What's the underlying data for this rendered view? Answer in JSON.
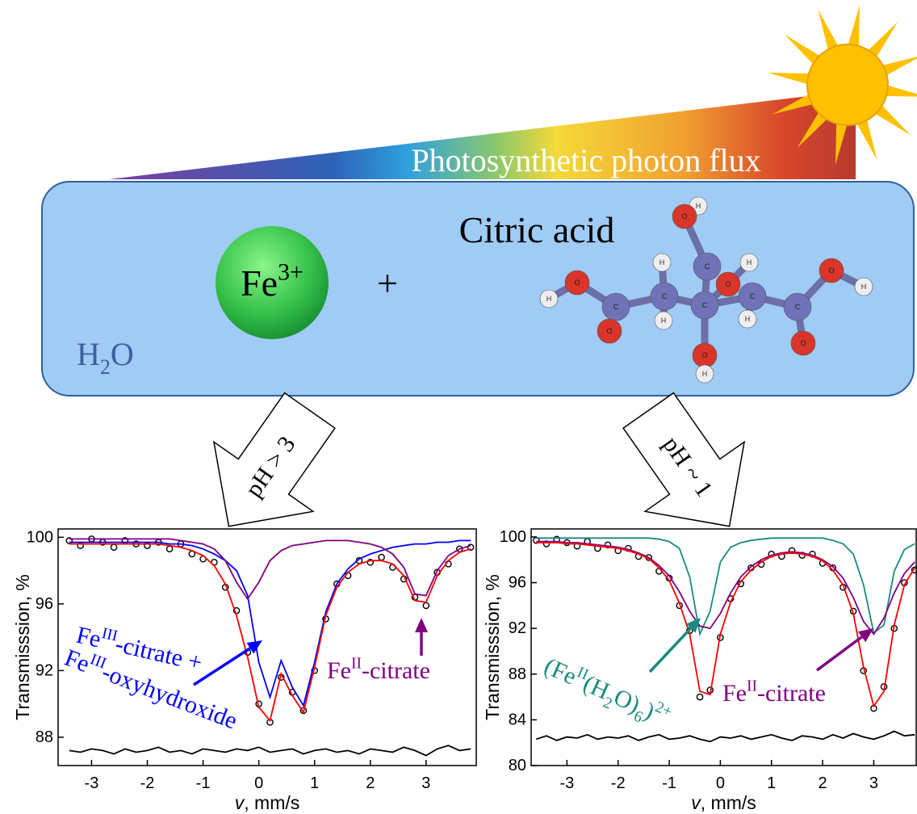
{
  "diagram": {
    "flux_label": "Photosynthetic photon flux",
    "reagent": [
      {
        "text": "Fe"
      },
      {
        "sup": "3+"
      }
    ],
    "plus": "+",
    "acid_label": "Citric acid",
    "solvent": [
      {
        "text": "H"
      },
      {
        "sub": "2"
      },
      {
        "text": "O"
      }
    ],
    "atoms": [
      "H",
      "O",
      "C",
      "O",
      "H",
      "H",
      "C",
      "H",
      "C",
      "C",
      "H",
      "C",
      "O",
      "H",
      "O",
      "C",
      "O",
      "H",
      "O",
      "O",
      "H"
    ],
    "conditions": [
      "pH > 3",
      "pH ~ 1"
    ]
  },
  "chart_data": [
    {
      "type": "line",
      "ylabel": "Transmisssion, %",
      "xlabel": [
        {
          "italic": "v"
        },
        {
          "text": ", mm/s"
        }
      ],
      "xlim": [
        -3.6,
        3.9
      ],
      "ylim": [
        86.3,
        100.5
      ],
      "xticks": [
        -3,
        -2,
        -1,
        0,
        1,
        2,
        3
      ],
      "yticks": [
        88,
        92,
        96,
        100
      ],
      "x": [
        -3.4,
        -3.2,
        -3.0,
        -2.8,
        -2.6,
        -2.4,
        -2.2,
        -2.0,
        -1.8,
        -1.6,
        -1.4,
        -1.2,
        -1.0,
        -0.8,
        -0.6,
        -0.4,
        -0.2,
        0,
        0.2,
        0.4,
        0.6,
        0.8,
        1.0,
        1.2,
        1.4,
        1.6,
        1.8,
        2.0,
        2.2,
        2.4,
        2.6,
        2.8,
        3.0,
        3.2,
        3.4,
        3.6,
        3.8
      ],
      "series": [
        {
          "style": "markers",
          "color": "#000000",
          "values": [
            99.8,
            99.5,
            99.9,
            99.7,
            99.4,
            99.8,
            99.6,
            99.5,
            99.7,
            99.3,
            99.6,
            99.0,
            98.7,
            98.5,
            97.0,
            95.6,
            93.1,
            90.0,
            88.9,
            91.6,
            90.7,
            89.6,
            92.0,
            95.1,
            97.2,
            97.7,
            98.6,
            98.5,
            98.8,
            98.2,
            97.5,
            96.4,
            95.9,
            97.9,
            98.4,
            99.3,
            99.4
          ]
        },
        {
          "style": "line",
          "color": "#0000ff",
          "values": [
            99.7,
            99.7,
            99.7,
            99.7,
            99.7,
            99.7,
            99.7,
            99.7,
            99.7,
            99.6,
            99.6,
            99.5,
            99.3,
            99.0,
            98.6,
            98.0,
            96.5,
            92.5,
            90.4,
            92.6,
            91.0,
            89.9,
            92.5,
            95.5,
            97.2,
            98.1,
            98.7,
            99.0,
            99.2,
            99.4,
            99.5,
            99.6,
            99.6,
            99.7,
            99.7,
            99.8,
            99.8
          ]
        },
        {
          "style": "line",
          "color": "#800080",
          "values": [
            99.9,
            99.9,
            99.9,
            99.9,
            99.9,
            99.9,
            99.9,
            99.9,
            99.9,
            99.9,
            99.8,
            99.7,
            99.6,
            99.3,
            98.6,
            97.3,
            96.3,
            97.3,
            98.6,
            99.2,
            99.5,
            99.6,
            99.7,
            99.8,
            99.8,
            99.8,
            99.7,
            99.6,
            99.4,
            99.0,
            98.2,
            96.6,
            96.5,
            98.0,
            98.9,
            99.3,
            99.5
          ]
        },
        {
          "style": "line",
          "color": "#ff0000",
          "values": [
            99.6,
            99.6,
            99.6,
            99.6,
            99.6,
            99.6,
            99.6,
            99.6,
            99.6,
            99.5,
            99.4,
            99.2,
            98.9,
            98.3,
            97.2,
            95.3,
            92.8,
            89.8,
            89.0,
            91.8,
            90.5,
            89.5,
            92.2,
            95.3,
            97.0,
            97.9,
            98.4,
            98.6,
            98.6,
            98.4,
            97.7,
            96.2,
            96.1,
            97.7,
            98.6,
            99.1,
            99.3
          ]
        },
        {
          "style": "line",
          "color": "#000000",
          "values": [
            87.2,
            87.1,
            87.3,
            87.2,
            87.0,
            87.3,
            87.1,
            87.2,
            87.4,
            87.1,
            87.2,
            87.0,
            87.3,
            87.2,
            87.1,
            87.3,
            87.2,
            87.4,
            87.1,
            87.2,
            87.3,
            87.0,
            87.2,
            87.3,
            87.1,
            87.2,
            87.0,
            87.3,
            87.2,
            87.1,
            87.4,
            87.2,
            86.9,
            87.3,
            87.5,
            87.2,
            87.3
          ]
        }
      ],
      "annotations": [
        {
          "color": "#0000ff",
          "parts": [
            {
              "text": "Fe"
            },
            {
              "sup": "III"
            },
            {
              "text": "-citrate +"
            }
          ]
        },
        {
          "color": "#0000ff",
          "parts": [
            {
              "text": "Fe"
            },
            {
              "sup": "III"
            },
            {
              "text": "-oxyhydroxide"
            }
          ]
        },
        {
          "color": "#800080",
          "parts": [
            {
              "text": "Fe"
            },
            {
              "sup": "II"
            },
            {
              "text": "-citrate"
            }
          ]
        }
      ]
    },
    {
      "type": "line",
      "ylabel": "Transmisssion, %",
      "xlabel": [
        {
          "italic": "v"
        },
        {
          "text": ", mm/s"
        }
      ],
      "xlim": [
        -3.7,
        3.83
      ],
      "ylim": [
        80,
        100.7
      ],
      "xticks": [
        -3,
        -2,
        -1,
        0,
        1,
        2,
        3
      ],
      "yticks": [
        80,
        84,
        88,
        92,
        96,
        100
      ],
      "x": [
        -3.6,
        -3.4,
        -3.2,
        -3.0,
        -2.8,
        -2.6,
        -2.4,
        -2.2,
        -2.0,
        -1.8,
        -1.6,
        -1.4,
        -1.2,
        -1.0,
        -0.8,
        -0.6,
        -0.4,
        -0.2,
        0,
        0.2,
        0.4,
        0.6,
        0.8,
        1.0,
        1.2,
        1.4,
        1.6,
        1.8,
        2.0,
        2.2,
        2.4,
        2.6,
        2.8,
        3.0,
        3.2,
        3.4,
        3.6,
        3.8
      ],
      "series": [
        {
          "style": "markers",
          "color": "#000000",
          "values": [
            99.7,
            99.4,
            99.8,
            99.5,
            99.2,
            99.6,
            99.0,
            99.3,
            98.8,
            99.0,
            98.3,
            98.2,
            97.0,
            96.4,
            94.0,
            91.8,
            86.0,
            86.6,
            91.2,
            94.6,
            95.9,
            97.3,
            97.6,
            98.5,
            98.3,
            98.8,
            98.4,
            98.5,
            97.7,
            97.3,
            95.6,
            93.5,
            88.3,
            85.0,
            86.9,
            92.0,
            96.0,
            97.1
          ]
        },
        {
          "style": "line",
          "color": "#1a8a80",
          "values": [
            99.9,
            99.9,
            99.9,
            99.9,
            99.9,
            99.9,
            99.9,
            99.9,
            99.9,
            99.9,
            99.9,
            99.9,
            99.8,
            99.6,
            99.0,
            96.5,
            91.5,
            93.5,
            97.8,
            99.1,
            99.5,
            99.7,
            99.8,
            99.9,
            99.9,
            99.9,
            99.9,
            99.9,
            99.9,
            99.7,
            99.4,
            98.5,
            95.8,
            91.6,
            92.3,
            97.0,
            98.9,
            99.4
          ]
        },
        {
          "style": "line",
          "color": "#800080",
          "values": [
            99.6,
            99.6,
            99.6,
            99.5,
            99.5,
            99.4,
            99.3,
            99.2,
            99.1,
            98.9,
            98.6,
            98.2,
            97.5,
            96.6,
            95.2,
            93.5,
            92.2,
            92.0,
            93.3,
            95.1,
            96.5,
            97.4,
            98.0,
            98.4,
            98.6,
            98.7,
            98.6,
            98.4,
            98.0,
            97.4,
            96.4,
            94.7,
            92.6,
            91.5,
            92.9,
            95.1,
            96.8,
            97.8
          ]
        },
        {
          "style": "line",
          "color": "#ff0000",
          "values": [
            99.5,
            99.5,
            99.5,
            99.4,
            99.4,
            99.3,
            99.2,
            99.1,
            99.0,
            98.8,
            98.5,
            98.1,
            97.3,
            96.2,
            94.2,
            91.5,
            86.5,
            86.2,
            91.5,
            94.3,
            96.1,
            97.1,
            97.8,
            98.3,
            98.5,
            98.6,
            98.5,
            98.3,
            97.9,
            97.1,
            95.8,
            93.3,
            88.6,
            85.2,
            86.5,
            92.3,
            95.8,
            97.3
          ]
        },
        {
          "style": "line",
          "color": "#000000",
          "values": [
            82.3,
            82.6,
            82.2,
            82.5,
            82.4,
            82.7,
            82.3,
            82.5,
            82.4,
            82.6,
            82.2,
            82.5,
            82.7,
            82.3,
            82.4,
            82.6,
            82.3,
            82.1,
            82.5,
            82.4,
            82.6,
            82.3,
            82.5,
            82.7,
            82.4,
            82.2,
            82.6,
            82.5,
            82.3,
            82.7,
            82.4,
            82.8,
            82.5,
            82.3,
            82.6,
            83.0,
            82.6,
            82.7
          ]
        }
      ],
      "annotations": [
        {
          "color": "#1a8a80",
          "parts": [
            {
              "text": "(Fe"
            },
            {
              "sup": "II"
            },
            {
              "text": "(H"
            },
            {
              "sub": "2"
            },
            {
              "text": "O)"
            },
            {
              "sub": "6"
            },
            {
              "text": ")"
            },
            {
              "sup": "2+"
            }
          ]
        },
        {
          "color": "#800080",
          "parts": [
            {
              "text": "Fe"
            },
            {
              "sup": "II"
            },
            {
              "text": "-citrate"
            }
          ]
        }
      ]
    }
  ]
}
